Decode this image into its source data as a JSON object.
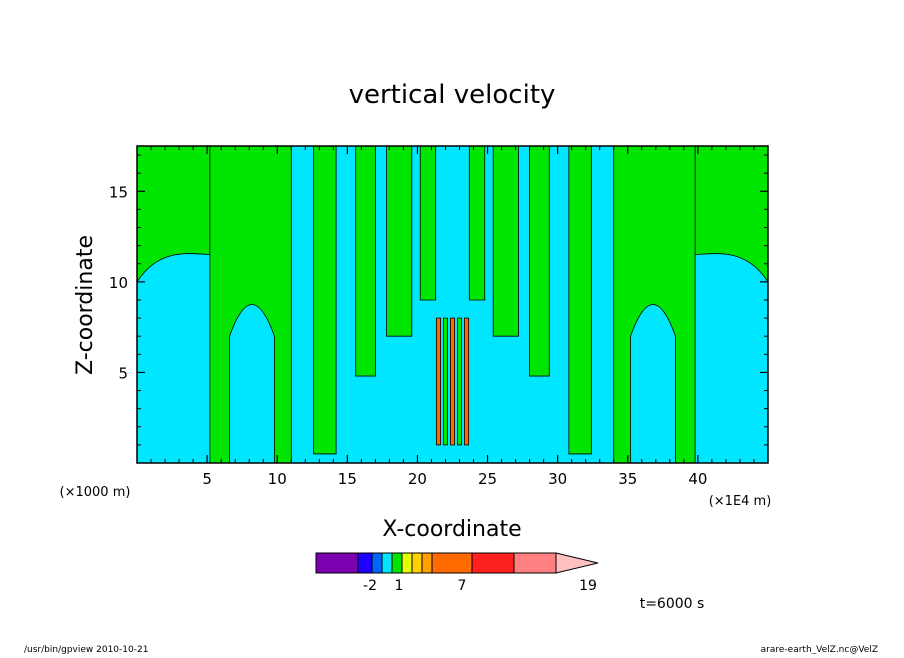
{
  "chart_data": {
    "type": "heatmap",
    "title": "vertical velocity",
    "xlabel": "X-coordinate",
    "ylabel": "Z-coordinate",
    "x_unit": "(×1000 m)",
    "x_scale_note": "(×1E4 m)",
    "xlim": [
      0,
      45
    ],
    "ylim": [
      0,
      17.5
    ],
    "x_ticks": [
      "5",
      "10",
      "15",
      "20",
      "25",
      "30",
      "35",
      "40"
    ],
    "y_ticks": [
      "5",
      "10",
      "15"
    ],
    "colorbar": {
      "colors": [
        "#7b00b0",
        "#1e00ff",
        "#0064ff",
        "#00e6ff",
        "#00e600",
        "#e6ff00",
        "#ffd000",
        "#ffa000",
        "#ff6a00",
        "#ff2020",
        "#ff8080",
        "#ffc0c0"
      ],
      "tick_labels": [
        "-2",
        "1",
        "7",
        "19"
      ],
      "extend": "max"
    },
    "field_colors": {
      "positive": "#00e600",
      "negative": "#00e6ff",
      "core": "#ff6a00"
    },
    "time_label": "t=6000 s"
  },
  "footer": {
    "left": "/usr/bin/gpview   2010-10-21",
    "right": "arare-earth_VelZ.nc@VelZ"
  }
}
